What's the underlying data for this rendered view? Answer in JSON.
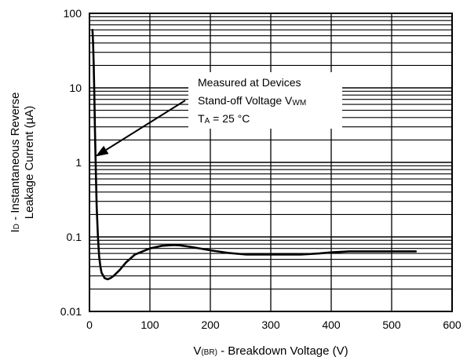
{
  "chart_data": {
    "type": "line",
    "yscale": "log",
    "xlim": [
      0,
      600
    ],
    "ylim": [
      0.01,
      100
    ],
    "xticks": [
      "0",
      "100",
      "200",
      "300",
      "400",
      "500",
      "600"
    ],
    "yticks": [
      "0.01",
      "0.1",
      "1",
      "10",
      "100"
    ],
    "xlabel": {
      "main": "V",
      "sub": "(BR)",
      "rest": " - Breakdown Voltage (V)"
    },
    "ylabel": {
      "line1_main": "I",
      "line1_sub": "D",
      "line1_rest": " - Instantaneous Reverse",
      "line2": "Leakage Current (µA)"
    },
    "grid": true,
    "annotation": {
      "line1": "Measured at Devices",
      "line2_main": "Stand-off Voltage V",
      "line2_sub": "WM",
      "line3_main": "T",
      "line3_sub": "A",
      "line3_rest": " = 25 °C",
      "arrow_to": [
        10,
        1.2
      ]
    },
    "series": [
      {
        "x": [
          5,
          6,
          7,
          8,
          9,
          10,
          11,
          12,
          14,
          16,
          18,
          20,
          25,
          30,
          35,
          40,
          50,
          60,
          75,
          100,
          120,
          140,
          150,
          170,
          200,
          230,
          260,
          300,
          350,
          380,
          400,
          430,
          460,
          500,
          540
        ],
        "y": [
          60,
          40,
          20,
          8,
          3,
          1.2,
          0.5,
          0.25,
          0.1,
          0.055,
          0.04,
          0.033,
          0.028,
          0.027,
          0.028,
          0.03,
          0.036,
          0.045,
          0.058,
          0.07,
          0.076,
          0.078,
          0.077,
          0.073,
          0.066,
          0.061,
          0.058,
          0.058,
          0.058,
          0.06,
          0.062,
          0.064,
          0.064,
          0.064,
          0.064
        ]
      }
    ]
  }
}
